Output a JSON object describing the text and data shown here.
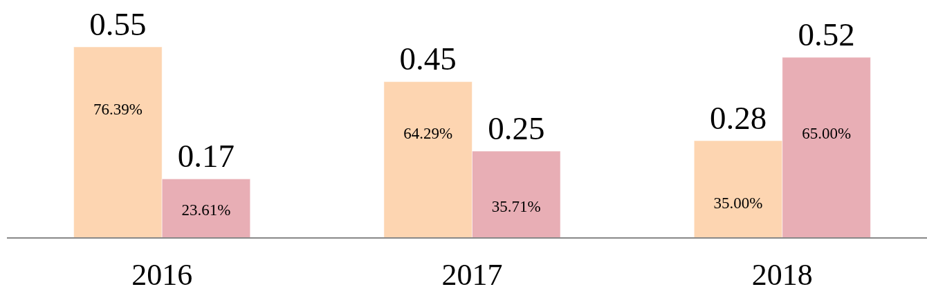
{
  "chart_data": {
    "type": "bar",
    "categories": [
      "2016",
      "2017",
      "2018"
    ],
    "series": [
      {
        "color": "#fdd5b1",
        "values": [
          0.55,
          0.45,
          0.28
        ]
      },
      {
        "color": "#e8aeb5",
        "values": [
          0.17,
          0.25,
          0.52
        ]
      }
    ],
    "data_labels": true,
    "tick_labels": "x",
    "annotations": [
      {
        "text": "76.39%",
        "x": "2016",
        "y": 0.37
      },
      {
        "text": "23.61%",
        "x": "2016",
        "y": 0.08
      },
      {
        "text": "64.29%",
        "x": "2017",
        "y": 0.3
      },
      {
        "text": "35.71%",
        "x": "2017",
        "y": 0.09
      },
      {
        "text": "35.00%",
        "x": "2018",
        "y": 0.1
      },
      {
        "text": "65.00%",
        "x": "2018",
        "y": 0.3
      }
    ]
  }
}
